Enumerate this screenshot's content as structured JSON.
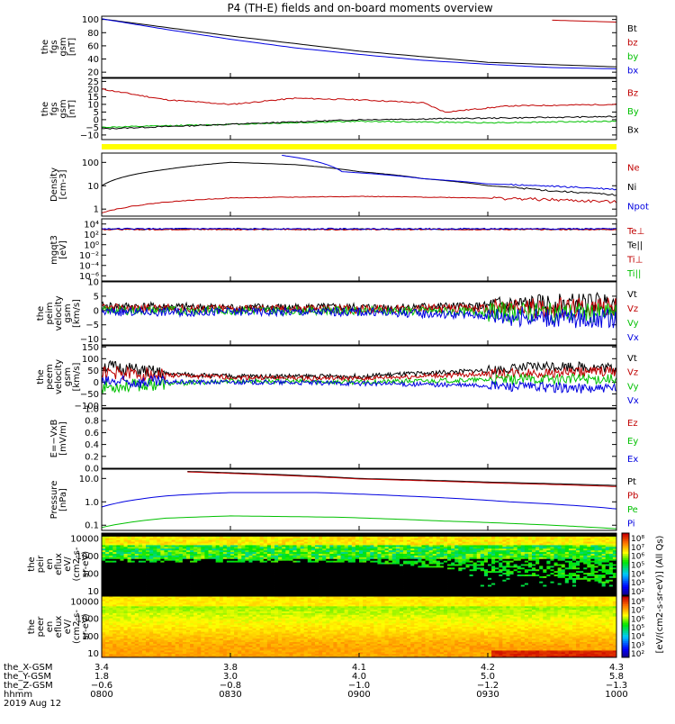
{
  "title": "P4 (TH-E) fields and on-board moments overview",
  "colors": {
    "black": "#000000",
    "red": "#c00000",
    "green": "#00c000",
    "blue": "#0000e0",
    "yellow": "#ffff00"
  },
  "panels": [
    {
      "id": "fgs-btotal",
      "ylabel": [
        "the",
        "fgs",
        "gsm",
        "[nT]"
      ],
      "yticks": [
        "100",
        "80",
        "60",
        "40",
        "20"
      ],
      "legend": [
        {
          "t": "Bt",
          "c": "black"
        },
        {
          "t": "bz",
          "c": "red"
        },
        {
          "t": "by",
          "c": "green"
        },
        {
          "t": "bx",
          "c": "blue"
        }
      ]
    },
    {
      "id": "fgs-gsm",
      "ylabel": [
        "the",
        "fgs",
        "gsm",
        "[nT]"
      ],
      "yticks": [
        "25",
        "20",
        "15",
        "10",
        "5",
        "0",
        "−5",
        "−10"
      ],
      "legend": [
        {
          "t": "Bz",
          "c": "red"
        },
        {
          "t": "By",
          "c": "green"
        },
        {
          "t": "Bx",
          "c": "black"
        }
      ]
    },
    {
      "id": "density",
      "ylabel": [
        "Density",
        "[cm-3]"
      ],
      "yticks": [
        "100",
        "10",
        "1"
      ],
      "legend": [
        {
          "t": "Ne",
          "c": "red"
        },
        {
          "t": "Ni",
          "c": "black"
        },
        {
          "t": "Npot",
          "c": "blue"
        }
      ]
    },
    {
      "id": "temperature",
      "ylabel": [
        "mgqt3",
        "[eV]"
      ],
      "yticks": [
        "10⁴",
        "10²",
        "10⁰",
        "10⁻²",
        "10⁻⁴",
        "10⁻⁶"
      ],
      "legend": [
        {
          "t": "Te⊥",
          "c": "red"
        },
        {
          "t": "Te||",
          "c": "black"
        },
        {
          "t": "Ti⊥",
          "c": "red"
        },
        {
          "t": "Ti||",
          "c": "green"
        }
      ]
    },
    {
      "id": "peim-velocity",
      "ylabel": [
        "the",
        "peim",
        "velocity",
        "gsm",
        "[km/s]"
      ],
      "yticks": [
        "10",
        "5",
        "0",
        "−5",
        "−10"
      ],
      "legend": [
        {
          "t": "Vt",
          "c": "black"
        },
        {
          "t": "Vz",
          "c": "red"
        },
        {
          "t": "Vy",
          "c": "green"
        },
        {
          "t": "Vx",
          "c": "blue"
        }
      ]
    },
    {
      "id": "peem-velocity",
      "ylabel": [
        "the",
        "peem",
        "velocity",
        "gsm",
        "[km/s]"
      ],
      "yticks": [
        "150",
        "100",
        "50",
        "0",
        "−50",
        "−100"
      ],
      "legend": [
        {
          "t": "Vt",
          "c": "black"
        },
        {
          "t": "Vz",
          "c": "red"
        },
        {
          "t": "Vy",
          "c": "green"
        },
        {
          "t": "Vx",
          "c": "blue"
        }
      ]
    },
    {
      "id": "e-field",
      "ylabel": [
        "E=−VxB",
        "[mV/m]"
      ],
      "yticks": [
        "1.0",
        "0.8",
        "0.6",
        "0.4",
        "0.2",
        "0.0"
      ],
      "legend": [
        {
          "t": "Ez",
          "c": "red"
        },
        {
          "t": "Ey",
          "c": "green"
        },
        {
          "t": "Ex",
          "c": "blue"
        }
      ]
    },
    {
      "id": "pressure",
      "ylabel": [
        "Pressure",
        "[nPa]"
      ],
      "yticks": [
        "10.0",
        "1.0",
        "0.1"
      ],
      "legend": [
        {
          "t": "Pt",
          "c": "black"
        },
        {
          "t": "Pb",
          "c": "red"
        },
        {
          "t": "Pe",
          "c": "green"
        },
        {
          "t": "Pi",
          "c": "blue"
        }
      ]
    },
    {
      "id": "peir-eflux",
      "ylabel": [
        "the",
        "peir",
        "en",
        "eflux",
        "eV/",
        "(cm2-s-",
        "sr-eV)"
      ],
      "yticks": [
        "10000",
        "1000",
        "100",
        "10"
      ]
    },
    {
      "id": "peer-eflux",
      "ylabel": [
        "the",
        "peer",
        "en",
        "eflux",
        "eV/",
        "(cm2-s-",
        "sr-eV)"
      ],
      "yticks": [
        "10000",
        "1000",
        "100",
        "10"
      ]
    }
  ],
  "colorbar": {
    "label": "[eV/(cm2-s-sr-eV)] (All Qs)",
    "ticks_upper": [
      "10⁸",
      "10⁷",
      "10⁶",
      "10⁵",
      "10⁴",
      "10³",
      "10²"
    ],
    "ticks_lower": [
      "10⁸",
      "10⁷",
      "10⁶",
      "10⁵",
      "10⁴",
      "10³",
      "10²"
    ]
  },
  "xaxis": {
    "row_labels": [
      "the_X-GSM",
      "the_Y-GSM",
      "the_Z-GSM",
      "hhmm",
      "2019 Aug 12"
    ],
    "columns": [
      {
        "x": "3.4",
        "y": "1.8",
        "z": "−0.6",
        "t": "0800"
      },
      {
        "x": "3.8",
        "y": "3.0",
        "z": "−0.8",
        "t": "0830"
      },
      {
        "x": "4.1",
        "y": "4.0",
        "z": "−1.0",
        "t": "0900"
      },
      {
        "x": "4.2",
        "y": "5.0",
        "z": "−1.2",
        "t": "0930"
      },
      {
        "x": "4.3",
        "y": "5.8",
        "z": "−1.3",
        "t": "1000"
      }
    ]
  },
  "chart_data": {
    "type": "line",
    "title": "P4 (TH-E) fields and on-board moments overview",
    "x_label": "hhmm",
    "x_range": [
      "0800",
      "1000"
    ],
    "x_ticks": [
      "0800",
      "0830",
      "0900",
      "0930",
      "1000"
    ],
    "series": {
      "fgs_total": [
        {
          "name": "Bt",
          "points": [
            [
              0,
              101
            ],
            [
              30,
              75
            ],
            [
              60,
              52
            ],
            [
              90,
              35
            ],
            [
              120,
              28
            ]
          ],
          "partial": "visible only at top-right"
        },
        {
          "name": "bz",
          "points": [
            [
              105,
              99
            ],
            [
              120,
              96
            ]
          ]
        },
        {
          "name": "by",
          "points": [
            [
              0,
              7
            ],
            [
              60,
              7
            ],
            [
              120,
              7
            ]
          ]
        },
        {
          "name": "bx",
          "points": [
            [
              0,
              101
            ],
            [
              15,
              85
            ],
            [
              30,
              70
            ],
            [
              45,
              57
            ],
            [
              60,
              47
            ],
            [
              75,
              38
            ],
            [
              90,
              32
            ],
            [
              105,
              27
            ],
            [
              120,
              25
            ]
          ]
        }
      ],
      "fgs_gsm": [
        {
          "name": "Bz",
          "points": [
            [
              0,
              20
            ],
            [
              15,
              13
            ],
            [
              30,
              10
            ],
            [
              45,
              14
            ],
            [
              60,
              13
            ],
            [
              75,
              11
            ],
            [
              80,
              5
            ],
            [
              95,
              9
            ],
            [
              120,
              10
            ]
          ]
        },
        {
          "name": "By",
          "points": [
            [
              0,
              -5
            ],
            [
              30,
              -3
            ],
            [
              60,
              -1
            ],
            [
              90,
              -2
            ],
            [
              120,
              -1
            ]
          ]
        },
        {
          "name": "Bx",
          "points": [
            [
              0,
              -6
            ],
            [
              30,
              -3
            ],
            [
              60,
              0
            ],
            [
              90,
              1
            ],
            [
              120,
              2
            ]
          ]
        }
      ],
      "density": [
        {
          "name": "Ni",
          "points": [
            [
              0,
              10
            ],
            [
              15,
              50
            ],
            [
              30,
              100
            ],
            [
              45,
              80
            ],
            [
              60,
              40
            ],
            [
              75,
              20
            ],
            [
              90,
              10
            ],
            [
              105,
              6
            ],
            [
              120,
              4
            ]
          ]
        },
        {
          "name": "Ne",
          "points": [
            [
              0,
              0.7
            ],
            [
              15,
              2
            ],
            [
              30,
              3
            ],
            [
              60,
              3.5
            ],
            [
              90,
              3
            ],
            [
              105,
              2.5
            ],
            [
              120,
              2
            ]
          ]
        },
        {
          "name": "Npot",
          "points": [
            [
              42,
              200
            ],
            [
              56,
              40
            ],
            [
              75,
              20
            ],
            [
              90,
              12
            ],
            [
              120,
              7
            ]
          ]
        }
      ],
      "temperature": [
        {
          "name": "Te||",
          "points": [
            [
              0,
              1000
            ],
            [
              60,
              1000
            ],
            [
              120,
              1000
            ]
          ]
        },
        {
          "name": "Te⊥",
          "points": [
            [
              0,
              900
            ],
            [
              60,
              900
            ],
            [
              120,
              900
            ]
          ]
        }
      ],
      "peim_velocity": [
        {
          "name": "Vt",
          "points": [
            [
              0,
              1.5
            ],
            [
              30,
              1
            ],
            [
              60,
              1
            ],
            [
              90,
              1.5
            ],
            [
              120,
              3
            ]
          ]
        },
        {
          "name": "Vz",
          "points": [
            [
              0,
              0.8
            ],
            [
              60,
              0.5
            ],
            [
              120,
              1
            ]
          ]
        },
        {
          "name": "Vy",
          "points": [
            [
              0,
              0
            ],
            [
              60,
              0
            ],
            [
              120,
              -1
            ]
          ]
        },
        {
          "name": "Vx",
          "points": [
            [
              0,
              -0.5
            ],
            [
              60,
              -0.5
            ],
            [
              120,
              -3
            ]
          ]
        }
      ],
      "peem_velocity": [
        {
          "name": "Vt",
          "points": [
            [
              0,
              70
            ],
            [
              15,
              35
            ],
            [
              30,
              25
            ],
            [
              60,
              25
            ],
            [
              90,
              50
            ],
            [
              105,
              70
            ],
            [
              120,
              60
            ]
          ]
        },
        {
          "name": "Vz",
          "points": [
            [
              0,
              40
            ],
            [
              30,
              20
            ],
            [
              60,
              15
            ],
            [
              90,
              35
            ],
            [
              120,
              45
            ]
          ]
        },
        {
          "name": "Vy",
          "points": [
            [
              0,
              -20
            ],
            [
              30,
              5
            ],
            [
              60,
              0
            ],
            [
              90,
              10
            ],
            [
              120,
              15
            ]
          ]
        },
        {
          "name": "Vx",
          "points": [
            [
              0,
              0
            ],
            [
              30,
              0
            ],
            [
              60,
              -5
            ],
            [
              90,
              -15
            ],
            [
              120,
              -30
            ]
          ]
        }
      ],
      "pressure": [
        {
          "name": "Pt",
          "points": [
            [
              20,
              20
            ],
            [
              40,
              15
            ],
            [
              60,
              10
            ],
            [
              90,
              7
            ],
            [
              120,
              5
            ]
          ]
        },
        {
          "name": "Pb",
          "points": [
            [
              20,
              19
            ],
            [
              40,
              14
            ],
            [
              60,
              9.5
            ],
            [
              90,
              6.5
            ],
            [
              120,
              4.5
            ]
          ]
        },
        {
          "name": "Pi",
          "points": [
            [
              0,
              0.6
            ],
            [
              15,
              1.8
            ],
            [
              30,
              2.5
            ],
            [
              50,
              2.5
            ],
            [
              70,
              1.8
            ],
            [
              95,
              1
            ],
            [
              120,
              0.5
            ]
          ]
        },
        {
          "name": "Pe",
          "points": [
            [
              0,
              0.08
            ],
            [
              15,
              0.2
            ],
            [
              30,
              0.25
            ],
            [
              55,
              0.22
            ],
            [
              80,
              0.15
            ],
            [
              120,
              0.07
            ]
          ]
        }
      ]
    }
  }
}
